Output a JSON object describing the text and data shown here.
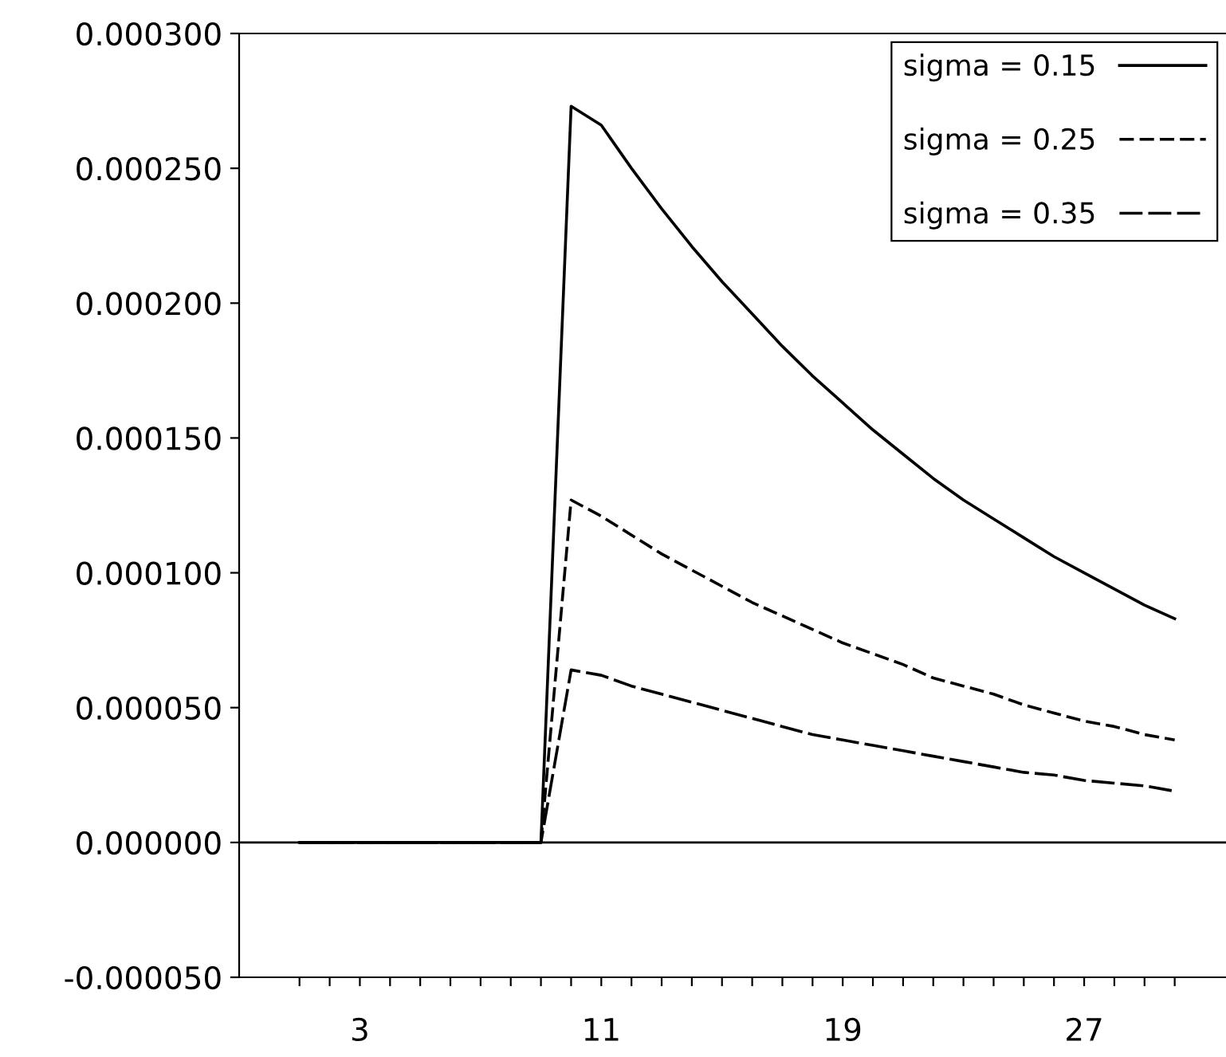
{
  "chart_data": {
    "type": "line",
    "x": [
      1,
      2,
      3,
      4,
      5,
      6,
      7,
      8,
      9,
      10,
      11,
      12,
      13,
      14,
      15,
      16,
      17,
      18,
      19,
      20,
      21,
      22,
      23,
      24,
      25,
      26,
      27,
      28,
      29,
      30
    ],
    "series": [
      {
        "name": "sigma = 0.15",
        "color": "#000000",
        "line_style": "solid",
        "values": [
          0,
          0,
          0,
          0,
          0,
          0,
          0,
          0,
          0,
          0.000273,
          0.000266,
          0.00025,
          0.000235,
          0.000221,
          0.000208,
          0.000196,
          0.000184,
          0.000173,
          0.000163,
          0.000153,
          0.000144,
          0.000135,
          0.000127,
          0.00012,
          0.000113,
          0.000106,
          0.0001,
          9.4e-05,
          8.8e-05,
          8.3e-05
        ]
      },
      {
        "name": "sigma = 0.25",
        "color": "#000000",
        "line_style": "dashed",
        "values": [
          0,
          0,
          0,
          0,
          0,
          0,
          0,
          0,
          0,
          0.000127,
          0.000121,
          0.000114,
          0.000107,
          0.000101,
          9.5e-05,
          8.9e-05,
          8.4e-05,
          7.9e-05,
          7.4e-05,
          7e-05,
          6.6e-05,
          6.1e-05,
          5.8e-05,
          5.5e-05,
          5.1e-05,
          4.8e-05,
          4.5e-05,
          4.3e-05,
          4e-05,
          3.8e-05
        ]
      },
      {
        "name": "sigma = 0.35",
        "color": "#000000",
        "line_style": "longdash",
        "values": [
          0,
          0,
          0,
          0,
          0,
          0,
          0,
          0,
          0,
          6.4e-05,
          6.2e-05,
          5.8e-05,
          5.5e-05,
          5.2e-05,
          4.9e-05,
          4.6e-05,
          4.3e-05,
          4e-05,
          3.8e-05,
          3.6e-05,
          3.4e-05,
          3.2e-05,
          3e-05,
          2.8e-05,
          2.6e-05,
          2.5e-05,
          2.3e-05,
          2.2e-05,
          2.1e-05,
          1.9e-05
        ]
      }
    ],
    "xlim": [
      -1,
      31.7
    ],
    "xticks": [
      {
        "value": 1,
        "label": null
      },
      {
        "value": 2,
        "label": null
      },
      3,
      {
        "value": 4,
        "label": null
      },
      {
        "value": 5,
        "label": null
      },
      {
        "value": 6,
        "label": null
      },
      {
        "value": 7,
        "label": null
      },
      {
        "value": 8,
        "label": null
      },
      {
        "value": 9,
        "label": null
      },
      {
        "value": 10,
        "label": null
      },
      11,
      {
        "value": 12,
        "label": null
      },
      {
        "value": 13,
        "label": null
      },
      {
        "value": 14,
        "label": null
      },
      {
        "value": 15,
        "label": null
      },
      {
        "value": 16,
        "label": null
      },
      {
        "value": 17,
        "label": null
      },
      {
        "value": 18,
        "label": null
      },
      19,
      {
        "value": 20,
        "label": null
      },
      {
        "value": 21,
        "label": null
      },
      {
        "value": 22,
        "label": null
      },
      {
        "value": 23,
        "label": null
      },
      {
        "value": 24,
        "label": null
      },
      {
        "value": 25,
        "label": null
      },
      {
        "value": 26,
        "label": null
      },
      27,
      {
        "value": 28,
        "label": null
      },
      {
        "value": 29,
        "label": null
      },
      {
        "value": 30,
        "label": null
      }
    ],
    "ylim": [
      -5e-05,
      0.0003
    ],
    "yticks": [
      {
        "value": -5e-05,
        "label": "-0.000050"
      },
      {
        "value": 0,
        "label": "0.000000"
      },
      {
        "value": 5e-05,
        "label": "0.000050"
      },
      {
        "value": 0.0001,
        "label": "0.000100"
      },
      {
        "value": 0.00015,
        "label": "0.000150"
      },
      {
        "value": 0.0002,
        "label": "0.000200"
      },
      {
        "value": 0.00025,
        "label": "0.000250"
      },
      {
        "value": 0.0003,
        "label": "0.000300"
      }
    ],
    "ref_lines": [
      {
        "axis": "y",
        "value": 0,
        "color": "#000000"
      }
    ],
    "grid": false,
    "legend": "top right",
    "marker": "none"
  }
}
